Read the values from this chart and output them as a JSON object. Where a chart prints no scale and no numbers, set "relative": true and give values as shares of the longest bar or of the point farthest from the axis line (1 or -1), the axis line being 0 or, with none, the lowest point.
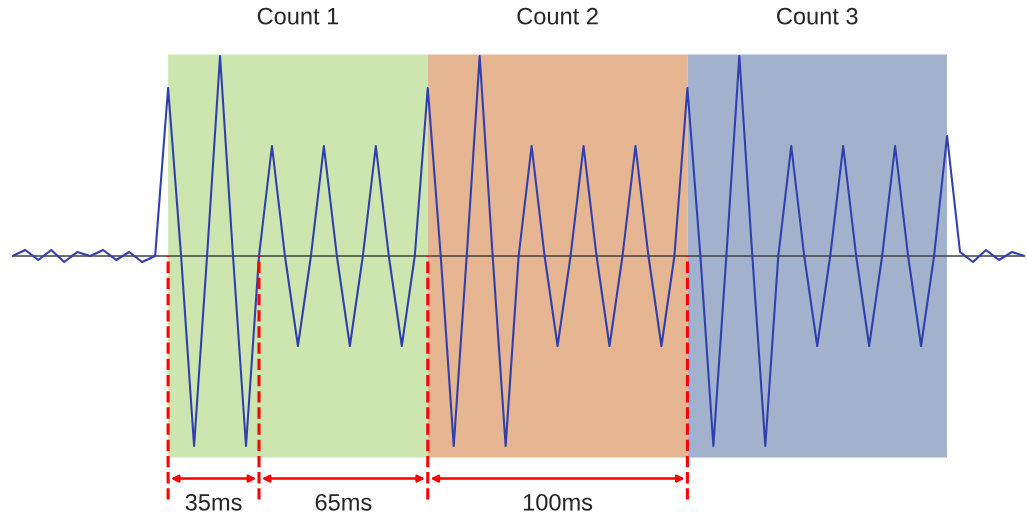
{
  "chart_data": {
    "type": "line",
    "relative": true,
    "marker": "none",
    "line_style": "solid",
    "categories": [
      null,
      null,
      null,
      null,
      null,
      null,
      null,
      null,
      null,
      null,
      null,
      null,
      null,
      null,
      null,
      null,
      null,
      null,
      null,
      null,
      null,
      null,
      null,
      null,
      null,
      null,
      null,
      null,
      null,
      null,
      null,
      null,
      null,
      null,
      null,
      null,
      null,
      null,
      null,
      null,
      null,
      null,
      null,
      null,
      null,
      null,
      null,
      null,
      null,
      null,
      null,
      null,
      null,
      null,
      null,
      null,
      null,
      null,
      null,
      null,
      null,
      null,
      null,
      null,
      null,
      null,
      null,
      null,
      null,
      null,
      null,
      null,
      null,
      null,
      null,
      null,
      null,
      null,
      null
    ],
    "series": [
      {
        "color": "#2f3fae",
        "values": [
          0.0,
          0.03,
          -0.02,
          0.03,
          -0.03,
          0.02,
          0.0,
          0.03,
          -0.02,
          0.02,
          -0.03,
          0.0,
          0.84,
          0,
          -0.95,
          0,
          1.0,
          0,
          -0.95,
          0,
          0.55,
          0,
          -0.45,
          0,
          0.55,
          0,
          -0.45,
          0,
          0.55,
          0,
          -0.45,
          0,
          0.84,
          0,
          -0.95,
          0,
          1.0,
          0,
          -0.95,
          0,
          0.55,
          0,
          -0.45,
          0,
          0.55,
          0,
          -0.45,
          0,
          0.55,
          0,
          -0.45,
          0,
          0.84,
          0,
          -0.95,
          0,
          1.0,
          0,
          -0.95,
          0,
          0.55,
          0,
          -0.45,
          0,
          0.55,
          0,
          -0.45,
          0,
          0.55,
          0,
          -0.45,
          0,
          0.6,
          0.02,
          -0.03,
          0.03,
          -0.02,
          0.02,
          0.0
        ]
      }
    ],
    "annotations": [
      "Count 1",
      "Count 2",
      "Count 3",
      "35ms",
      "65ms",
      "100ms"
    ]
  }
}
